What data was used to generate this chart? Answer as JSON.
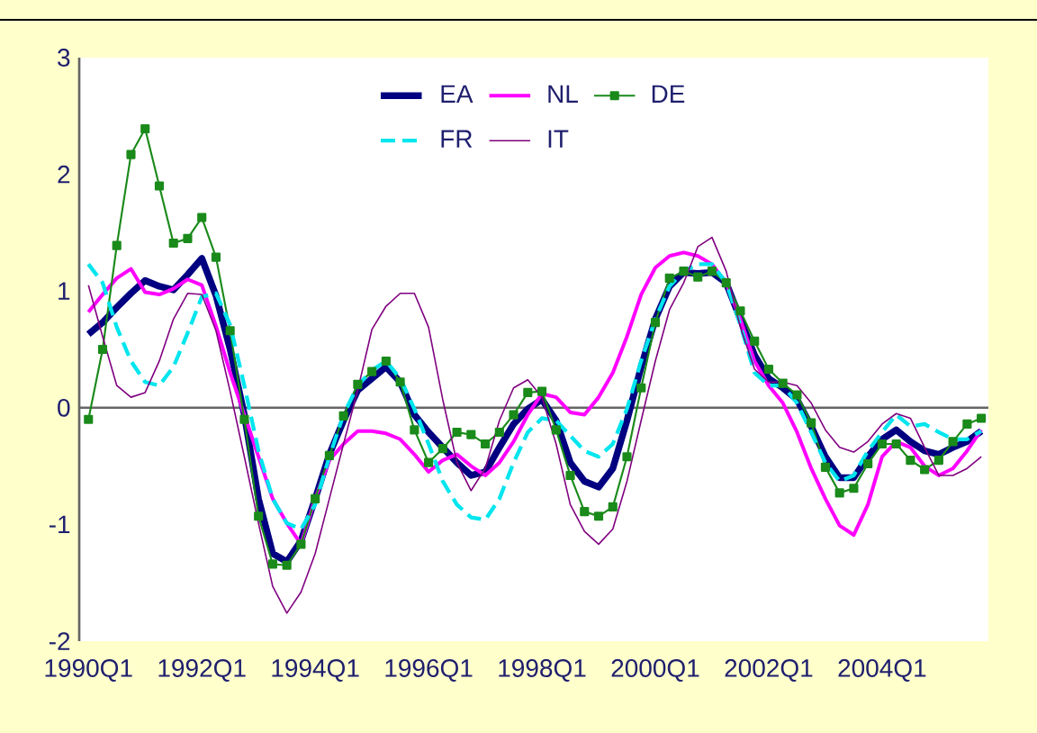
{
  "chart_data": {
    "type": "line",
    "categories": [
      "1990Q1",
      null,
      null,
      null,
      null,
      null,
      null,
      null,
      "1992Q1",
      null,
      null,
      null,
      null,
      null,
      null,
      null,
      "1994Q1",
      null,
      null,
      null,
      null,
      null,
      null,
      null,
      "1996Q1",
      null,
      null,
      null,
      null,
      null,
      null,
      null,
      "1998Q1",
      null,
      null,
      null,
      null,
      null,
      null,
      null,
      "2000Q1",
      null,
      null,
      null,
      null,
      null,
      null,
      null,
      "2002Q1",
      null,
      null,
      null,
      null,
      null,
      null,
      null,
      "2004Q1",
      null,
      null,
      null,
      null,
      null,
      null,
      null
    ],
    "ylim": [
      -2,
      3
    ],
    "yticks": [
      -2,
      -1,
      0,
      1,
      2,
      3
    ],
    "legend": "top",
    "series": [
      {
        "name": "EA",
        "color": "#000080",
        "marker": "none",
        "line_style": "solid",
        "values": [
          0.63,
          0.73,
          0.86,
          0.98,
          1.09,
          1.04,
          1.01,
          1.14,
          1.28,
          0.96,
          0.5,
          -0.06,
          -0.78,
          -1.25,
          -1.32,
          -1.14,
          -0.78,
          -0.4,
          -0.11,
          0.15,
          0.25,
          0.35,
          0.22,
          -0.06,
          -0.21,
          -0.34,
          -0.47,
          -0.58,
          -0.55,
          -0.34,
          -0.14,
          -0.01,
          0.07,
          -0.11,
          -0.47,
          -0.63,
          -0.68,
          -0.52,
          -0.11,
          0.35,
          0.76,
          1.04,
          1.16,
          1.15,
          1.16,
          1.07,
          0.76,
          0.45,
          0.25,
          0.17,
          0.07,
          -0.16,
          -0.42,
          -0.6,
          -0.6,
          -0.42,
          -0.27,
          -0.19,
          -0.29,
          -0.37,
          -0.4,
          -0.34,
          -0.29,
          -0.2
        ]
      },
      {
        "name": "NL",
        "color": "#ff00ff",
        "marker": "none",
        "line_style": "solid",
        "values": [
          0.82,
          0.97,
          1.11,
          1.19,
          0.99,
          0.97,
          1.02,
          1.1,
          1.05,
          0.7,
          0.3,
          -0.06,
          -0.42,
          -0.78,
          -0.99,
          -1.17,
          -0.78,
          -0.45,
          -0.31,
          -0.2,
          -0.2,
          -0.22,
          -0.27,
          -0.4,
          -0.55,
          -0.45,
          -0.4,
          -0.5,
          -0.58,
          -0.47,
          -0.29,
          -0.06,
          0.12,
          0.09,
          -0.04,
          -0.06,
          0.09,
          0.3,
          0.61,
          0.97,
          1.2,
          1.3,
          1.33,
          1.3,
          1.23,
          1.07,
          0.76,
          0.4,
          0.19,
          0.04,
          -0.21,
          -0.52,
          -0.78,
          -1.01,
          -1.09,
          -0.83,
          -0.42,
          -0.29,
          -0.34,
          -0.5,
          -0.58,
          -0.52,
          -0.37,
          -0.19
        ]
      },
      {
        "name": "DE",
        "color": "#1a8a1a",
        "marker": "square",
        "line_style": "solid",
        "values": [
          -0.1,
          0.5,
          1.39,
          2.17,
          2.39,
          1.9,
          1.41,
          1.45,
          1.63,
          1.29,
          0.66,
          -0.1,
          -0.93,
          -1.34,
          -1.35,
          -1.17,
          -0.78,
          -0.41,
          -0.07,
          0.2,
          0.31,
          0.4,
          0.22,
          -0.19,
          -0.47,
          -0.35,
          -0.21,
          -0.23,
          -0.31,
          -0.21,
          -0.06,
          0.13,
          0.14,
          -0.19,
          -0.58,
          -0.89,
          -0.93,
          -0.85,
          -0.42,
          0.17,
          0.73,
          1.11,
          1.17,
          1.12,
          1.17,
          1.07,
          0.83,
          0.57,
          0.33,
          0.21,
          0.11,
          -0.13,
          -0.51,
          -0.73,
          -0.69,
          -0.48,
          -0.31,
          -0.31,
          -0.45,
          -0.53,
          -0.45,
          -0.29,
          -0.14,
          -0.09
        ]
      },
      {
        "name": "FR",
        "color": "#00e5ee",
        "marker": "none",
        "line_style": "dashed",
        "values": [
          1.23,
          1.07,
          0.69,
          0.4,
          0.22,
          0.19,
          0.35,
          0.64,
          0.95,
          0.98,
          0.71,
          0.19,
          -0.37,
          -0.78,
          -0.99,
          -1.04,
          -0.83,
          -0.42,
          -0.06,
          0.19,
          0.32,
          0.4,
          0.25,
          -0.01,
          -0.31,
          -0.63,
          -0.83,
          -0.94,
          -0.96,
          -0.78,
          -0.47,
          -0.21,
          -0.09,
          -0.11,
          -0.24,
          -0.37,
          -0.42,
          -0.31,
          -0.01,
          0.4,
          0.76,
          1.04,
          1.17,
          1.23,
          1.23,
          1.07,
          0.71,
          0.3,
          0.19,
          0.19,
          0.04,
          -0.21,
          -0.47,
          -0.63,
          -0.58,
          -0.37,
          -0.21,
          -0.06,
          -0.16,
          -0.14,
          -0.21,
          -0.27,
          -0.27,
          -0.2
        ]
      },
      {
        "name": "IT",
        "color": "#800080",
        "marker": "none",
        "line_style": "solid",
        "values": [
          1.05,
          0.61,
          0.19,
          0.09,
          0.13,
          0.4,
          0.76,
          0.98,
          0.97,
          0.66,
          0.14,
          -0.42,
          -0.99,
          -1.53,
          -1.76,
          -1.58,
          -1.25,
          -0.78,
          -0.31,
          0.15,
          0.67,
          0.87,
          0.98,
          0.98,
          0.69,
          0.07,
          -0.47,
          -0.71,
          -0.52,
          -0.11,
          0.17,
          0.24,
          0.09,
          -0.31,
          -0.83,
          -1.06,
          -1.17,
          -1.04,
          -0.63,
          -0.11,
          0.4,
          0.84,
          1.07,
          1.38,
          1.46,
          1.17,
          0.69,
          0.33,
          0.22,
          0.22,
          0.19,
          0.04,
          -0.19,
          -0.34,
          -0.38,
          -0.29,
          -0.14,
          -0.05,
          -0.09,
          -0.34,
          -0.58,
          -0.58,
          -0.52,
          -0.42
        ]
      }
    ]
  }
}
